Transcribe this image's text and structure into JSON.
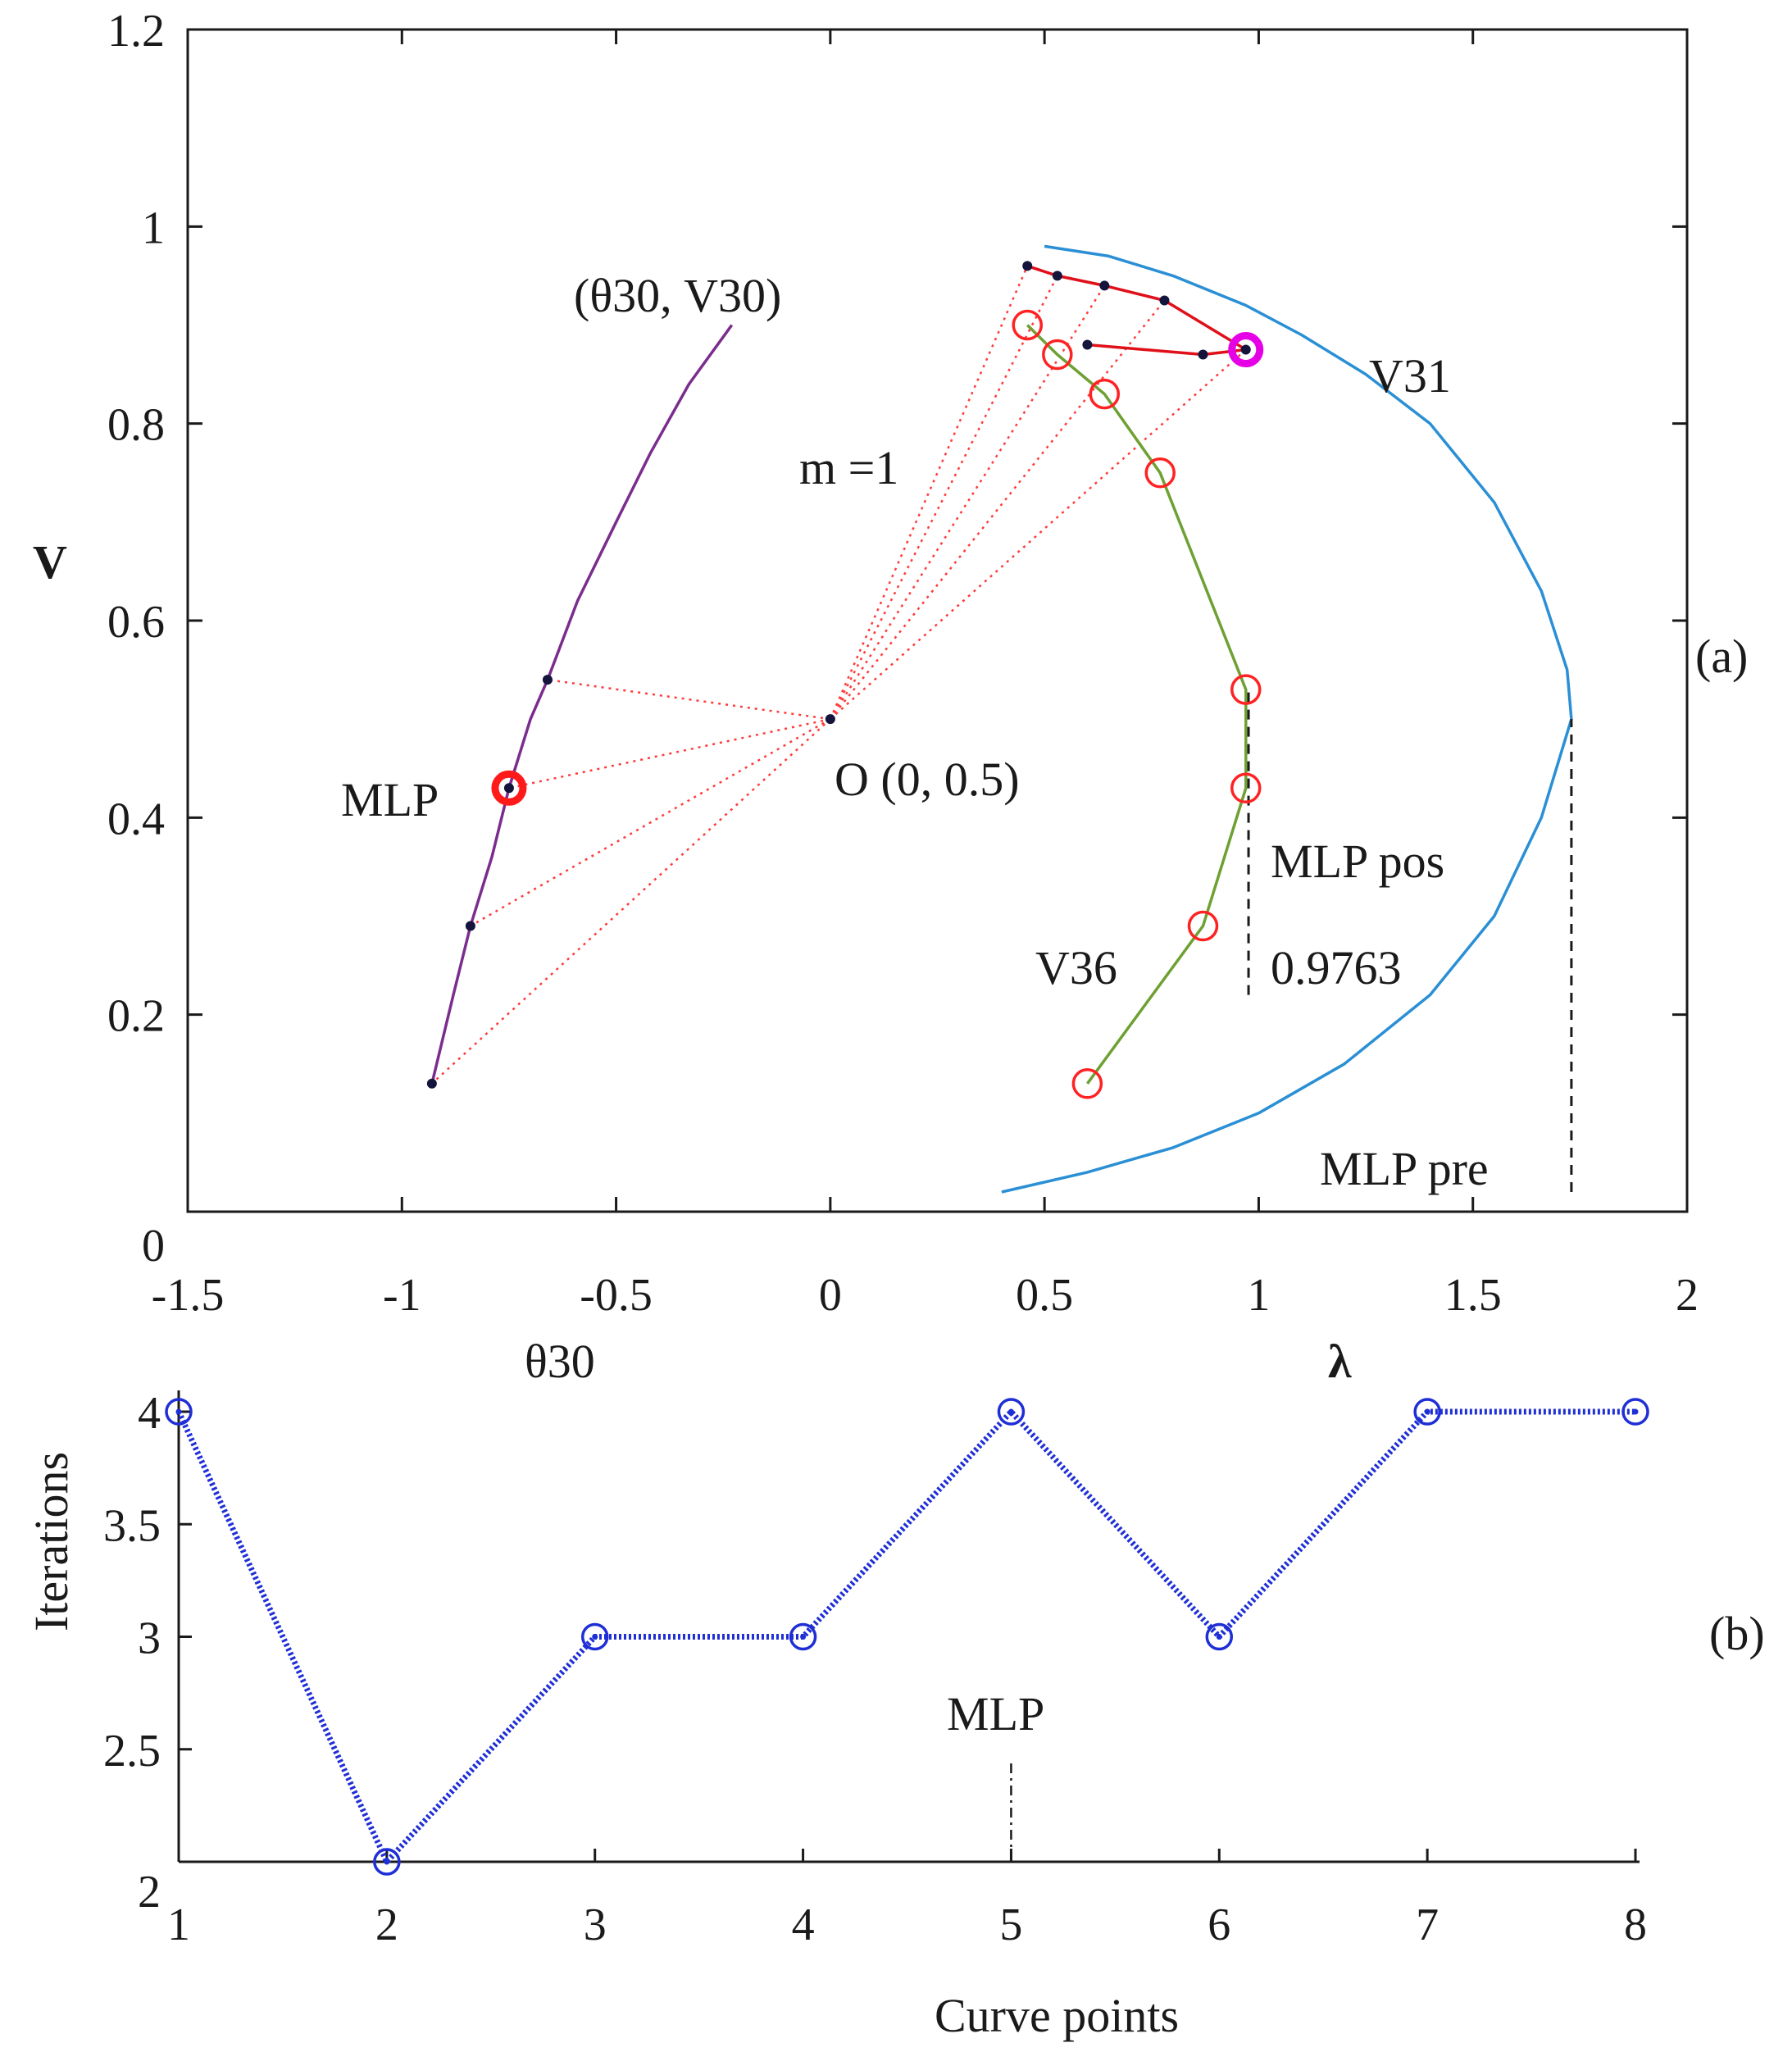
{
  "chart_data": [
    {
      "panel": "(a)",
      "type": "line",
      "xlabel_left": "θ30",
      "xlabel_right": "λ",
      "ylabel": "V",
      "xlim": [
        -1.5,
        2
      ],
      "ylim": [
        0,
        1.2
      ],
      "x_ticks": [
        "-1.5",
        "-1",
        "-0.5",
        "0",
        "0.5",
        "1",
        "1.5",
        "2"
      ],
      "y_ticks": [
        "0",
        "0.2",
        "0.4",
        "0.6",
        "0.8",
        "1",
        "1.2"
      ],
      "series": [
        {
          "name": "(θ30, V30) curve",
          "color": "#7b2d8e",
          "points": [
            [
              -0.93,
              0.13
            ],
            [
              -0.88,
              0.22
            ],
            [
              -0.84,
              0.29
            ],
            [
              -0.79,
              0.36
            ],
            [
              -0.75,
              0.43
            ],
            [
              -0.7,
              0.5
            ],
            [
              -0.66,
              0.54
            ],
            [
              -0.59,
              0.62
            ],
            [
              -0.5,
              0.7
            ],
            [
              -0.42,
              0.77
            ],
            [
              -0.33,
              0.84
            ],
            [
              -0.23,
              0.9
            ]
          ]
        },
        {
          "name": "V31",
          "color": "#2a8fd4",
          "points": [
            [
              0.4,
              0.02
            ],
            [
              0.6,
              0.04
            ],
            [
              0.8,
              0.065
            ],
            [
              1.0,
              0.1
            ],
            [
              1.2,
              0.15
            ],
            [
              1.4,
              0.22
            ],
            [
              1.55,
              0.3
            ],
            [
              1.66,
              0.4
            ],
            [
              1.73,
              0.5
            ],
            [
              1.72,
              0.55
            ],
            [
              1.66,
              0.63
            ],
            [
              1.55,
              0.72
            ],
            [
              1.4,
              0.8
            ],
            [
              1.25,
              0.85
            ],
            [
              1.1,
              0.89
            ],
            [
              0.97,
              0.92
            ],
            [
              0.8,
              0.95
            ],
            [
              0.65,
              0.97
            ],
            [
              0.5,
              0.98
            ]
          ]
        },
        {
          "name": "V36",
          "color": "#6ea033",
          "points": [
            [
              0.6,
              0.13
            ],
            [
              0.87,
              0.29
            ],
            [
              0.97,
              0.43
            ],
            [
              0.97,
              0.53
            ],
            [
              0.77,
              0.75
            ],
            [
              0.64,
              0.83
            ],
            [
              0.53,
              0.87
            ],
            [
              0.46,
              0.9
            ]
          ]
        },
        {
          "name": "predictor upper",
          "color": "#e0101a",
          "points": [
            [
              0.46,
              0.96
            ],
            [
              0.53,
              0.95
            ],
            [
              0.64,
              0.94
            ],
            [
              0.78,
              0.925
            ],
            [
              0.97,
              0.875
            ]
          ]
        },
        {
          "name": "predictor lower",
          "color": "#e0101a",
          "points": [
            [
              0.6,
              0.88
            ],
            [
              0.87,
              0.87
            ],
            [
              0.97,
              0.875
            ]
          ]
        }
      ],
      "marker_points": {
        "v30_dots": [
          [
            -0.93,
            0.13
          ],
          [
            -0.84,
            0.29
          ],
          [
            -0.66,
            0.54
          ],
          [
            -0.75,
            0.43
          ]
        ],
        "v36_circles": [
          [
            0.6,
            0.13
          ],
          [
            0.87,
            0.29
          ],
          [
            0.97,
            0.43
          ],
          [
            0.97,
            0.53
          ],
          [
            0.77,
            0.75
          ],
          [
            0.64,
            0.83
          ],
          [
            0.53,
            0.87
          ],
          [
            0.46,
            0.9
          ]
        ],
        "upper_dots": [
          [
            0.46,
            0.96
          ],
          [
            0.53,
            0.95
          ],
          [
            0.64,
            0.94
          ],
          [
            0.78,
            0.925
          ],
          [
            0.97,
            0.875
          ]
        ],
        "lower_dots": [
          [
            0.6,
            0.88
          ],
          [
            0.87,
            0.87
          ]
        ],
        "center": [
          0,
          0.5
        ],
        "mlp_left": [
          -0.75,
          0.43
        ],
        "mlp_right": [
          0.97,
          0.875
        ]
      },
      "dashed_lines": {
        "mlp_pos_x": 0.9763,
        "mlp_pos_y": [
          0.22,
          0.53
        ],
        "mlp_pre_x": 1.73,
        "mlp_pre_y": [
          0.02,
          0.5
        ]
      },
      "annotations": {
        "panel_label": "(a)",
        "theta_v30": "(θ30, V30)",
        "m1": "m =1",
        "v31": "V31",
        "v36": "V36",
        "mlp": "MLP",
        "origin": "O (0, 0.5)",
        "mlp_pos": "MLP pos",
        "mlp_pos_value": "0.9763",
        "mlp_pre": "MLP pre"
      }
    },
    {
      "panel": "(b)",
      "type": "line",
      "xlabel": "Curve points",
      "ylabel": "Iterations",
      "xlim": [
        1,
        8
      ],
      "ylim": [
        2,
        4
      ],
      "x_ticks": [
        "1",
        "2",
        "3",
        "4",
        "5",
        "6",
        "7",
        "8"
      ],
      "y_ticks": [
        "2",
        "2.5",
        "3",
        "3.5",
        "4"
      ],
      "series": [
        {
          "name": "Iterations",
          "color": "#1f2fd6",
          "x": [
            1,
            2,
            3,
            4,
            5,
            6,
            7,
            8
          ],
          "values": [
            4,
            2,
            3,
            3,
            4,
            3,
            4,
            4
          ]
        }
      ],
      "annotations": {
        "panel_label": "(b)",
        "mlp": "MLP",
        "mlp_x": 5,
        "mlp_y_range": [
          2,
          2.45
        ]
      }
    }
  ]
}
